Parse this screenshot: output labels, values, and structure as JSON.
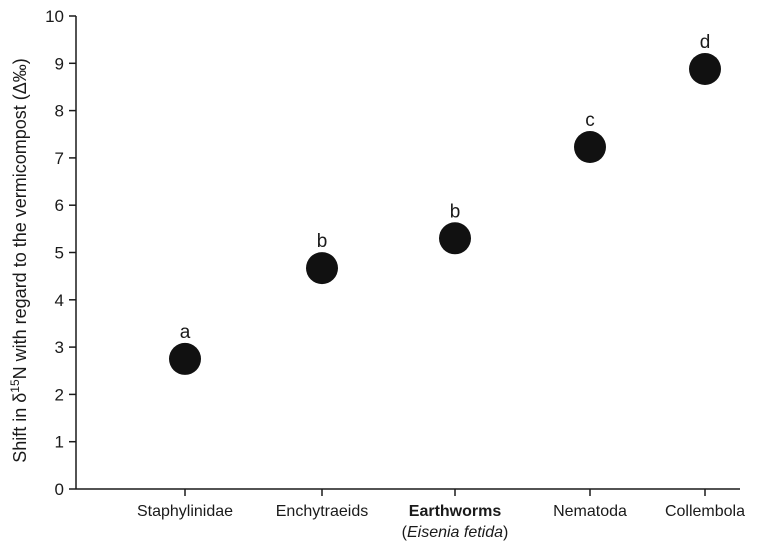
{
  "chart_data": {
    "type": "scatter",
    "ylabel": {
      "prefix": "Shift in δ",
      "superscript": "15",
      "suffix": "N with regard to the vermicompost (Δ‰)"
    },
    "ylim": [
      0,
      10
    ],
    "yticks": [
      "0",
      "1",
      "2",
      "3",
      "4",
      "5",
      "6",
      "7",
      "8",
      "9",
      "10"
    ],
    "categories": [
      {
        "label": "Staphylinidae",
        "bold": false,
        "sublabel": null,
        "value": 2.75,
        "group": "a"
      },
      {
        "label": "Enchytraeids",
        "bold": false,
        "sublabel": null,
        "value": 4.67,
        "group": "b"
      },
      {
        "label": "Earthworms",
        "bold": true,
        "sublabel": {
          "open": "(",
          "italic": "Eisenia fetida",
          "close": ")"
        },
        "value": 5.3,
        "group": "b"
      },
      {
        "label": "Nematoda",
        "bold": false,
        "sublabel": null,
        "value": 7.23,
        "group": "c"
      },
      {
        "label": "Collembola",
        "bold": false,
        "sublabel": null,
        "value": 8.88,
        "group": "d"
      }
    ],
    "marker_color": "#111111",
    "grid": false,
    "legend": "none"
  }
}
